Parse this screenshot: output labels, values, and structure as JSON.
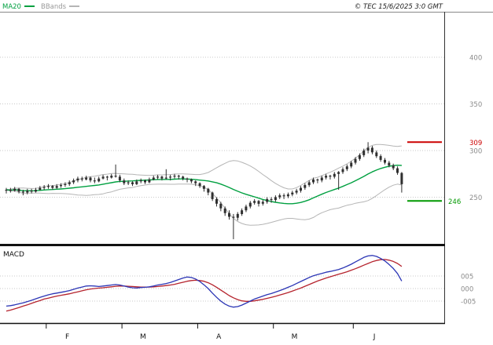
{
  "meta": {
    "copyright": "© TEC 15/6/2025 3:0 GMT"
  },
  "legend": {
    "ma20": "MA20",
    "bbands": "BBands"
  },
  "macd_panel": {
    "label": "MACD"
  },
  "colors": {
    "background": "#ffffff",
    "candle": "#2f2f2f",
    "ma20": "#00a040",
    "bbands": "#b5b5b5",
    "grid": "#c9c9c9",
    "axis_text": "#8a8a8a",
    "text": "#111111",
    "resistance": "#cc0000",
    "support": "#009900",
    "macd_line": "#2b35b5",
    "signal_line": "#b5232d"
  },
  "x_axis": {
    "months": [
      {
        "label": "F",
        "start_index": 10
      },
      {
        "label": "M",
        "start_index": 28
      },
      {
        "label": "A",
        "start_index": 46
      },
      {
        "label": "M",
        "start_index": 64
      },
      {
        "label": "J",
        "start_index": 83
      }
    ]
  },
  "chart_data": [
    {
      "type": "candlestick",
      "title": "",
      "ylim": [
        200,
        415
      ],
      "yticks": [
        {
          "label": "400",
          "value": 400
        },
        {
          "label": "350",
          "value": 350
        },
        {
          "label": "300",
          "value": 300
        },
        {
          "label": "250",
          "value": 250
        }
      ],
      "levels": [
        {
          "role": "resistance",
          "label": "309",
          "value": 309,
          "color": "#cc0000"
        },
        {
          "role": "support",
          "label": "246",
          "value": 246,
          "color": "#009900"
        }
      ],
      "overlays": {
        "ma20": {
          "window": 20,
          "color": "#00a040"
        },
        "bbands": {
          "window": 20,
          "stddev": 2,
          "color": "#b5b5b5"
        }
      },
      "candles": [
        [
          257,
          260,
          254,
          258
        ],
        [
          258,
          260,
          255,
          257
        ],
        [
          257,
          261,
          256,
          259
        ],
        [
          259,
          260,
          254,
          256
        ],
        [
          256,
          258,
          252,
          255
        ],
        [
          255,
          259,
          253,
          257
        ],
        [
          257,
          259,
          254,
          256
        ],
        [
          256,
          260,
          255,
          258
        ],
        [
          258,
          262,
          257,
          260
        ],
        [
          260,
          263,
          258,
          261
        ],
        [
          261,
          264,
          259,
          262
        ],
        [
          262,
          263,
          258,
          260
        ],
        [
          260,
          264,
          259,
          262
        ],
        [
          262,
          265,
          260,
          263
        ],
        [
          263,
          266,
          261,
          264
        ],
        [
          264,
          268,
          262,
          266
        ],
        [
          266,
          270,
          264,
          268
        ],
        [
          268,
          272,
          266,
          270
        ],
        [
          270,
          272,
          267,
          269
        ],
        [
          269,
          273,
          268,
          271
        ],
        [
          271,
          272,
          266,
          268
        ],
        [
          268,
          271,
          265,
          267
        ],
        [
          267,
          272,
          266,
          270
        ],
        [
          270,
          274,
          269,
          272
        ],
        [
          272,
          273,
          268,
          271
        ],
        [
          271,
          275,
          270,
          273
        ],
        [
          273,
          285,
          271,
          272
        ],
        [
          272,
          274,
          266,
          268
        ],
        [
          268,
          270,
          263,
          265
        ],
        [
          265,
          268,
          263,
          266
        ],
        [
          266,
          267,
          262,
          264
        ],
        [
          264,
          269,
          263,
          267
        ],
        [
          267,
          270,
          265,
          268
        ],
        [
          268,
          269,
          264,
          266
        ],
        [
          266,
          271,
          265,
          269
        ],
        [
          269,
          273,
          268,
          271
        ],
        [
          271,
          274,
          269,
          272
        ],
        [
          272,
          273,
          268,
          270
        ],
        [
          270,
          280,
          269,
          271
        ],
        [
          271,
          274,
          268,
          272
        ],
        [
          272,
          275,
          270,
          273
        ],
        [
          273,
          274,
          269,
          272
        ],
        [
          272,
          273,
          268,
          270
        ],
        [
          270,
          271,
          266,
          269
        ],
        [
          269,
          270,
          265,
          267
        ],
        [
          267,
          268,
          262,
          265
        ],
        [
          265,
          266,
          260,
          262
        ],
        [
          262,
          263,
          256,
          259
        ],
        [
          259,
          260,
          252,
          255
        ],
        [
          255,
          256,
          246,
          248
        ],
        [
          248,
          250,
          240,
          243
        ],
        [
          243,
          245,
          235,
          238
        ],
        [
          238,
          240,
          230,
          233
        ],
        [
          233,
          236,
          226,
          229
        ],
        [
          229,
          232,
          205,
          228
        ],
        [
          228,
          234,
          225,
          232
        ],
        [
          232,
          238,
          230,
          236
        ],
        [
          236,
          242,
          234,
          240
        ],
        [
          240,
          246,
          238,
          244
        ],
        [
          244,
          248,
          242,
          246
        ],
        [
          246,
          247,
          240,
          243
        ],
        [
          243,
          247,
          241,
          245
        ],
        [
          245,
          250,
          243,
          248
        ],
        [
          248,
          250,
          244,
          247
        ],
        [
          247,
          252,
          245,
          250
        ],
        [
          250,
          254,
          248,
          252
        ],
        [
          252,
          254,
          248,
          251
        ],
        [
          251,
          255,
          249,
          253
        ],
        [
          253,
          257,
          251,
          255
        ],
        [
          255,
          259,
          253,
          257
        ],
        [
          257,
          262,
          255,
          260
        ],
        [
          260,
          265,
          258,
          263
        ],
        [
          263,
          268,
          261,
          266
        ],
        [
          266,
          271,
          264,
          269
        ],
        [
          269,
          270,
          265,
          268
        ],
        [
          268,
          273,
          266,
          271
        ],
        [
          271,
          275,
          269,
          273
        ],
        [
          273,
          274,
          269,
          272
        ],
        [
          272,
          277,
          270,
          275
        ],
        [
          275,
          278,
          258,
          277
        ],
        [
          277,
          282,
          275,
          280
        ],
        [
          280,
          285,
          278,
          283
        ],
        [
          283,
          289,
          281,
          287
        ],
        [
          287,
          293,
          285,
          291
        ],
        [
          291,
          297,
          289,
          295
        ],
        [
          295,
          302,
          293,
          300
        ],
        [
          300,
          309,
          297,
          303
        ],
        [
          303,
          305,
          296,
          298
        ],
        [
          298,
          300,
          292,
          294
        ],
        [
          294,
          296,
          288,
          290
        ],
        [
          290,
          292,
          285,
          287
        ],
        [
          287,
          289,
          282,
          284
        ],
        [
          284,
          286,
          279,
          281
        ],
        [
          281,
          283,
          274,
          276
        ],
        [
          276,
          277,
          255,
          264
        ]
      ]
    },
    {
      "type": "line",
      "title": "MACD",
      "yticks": [
        {
          "label": "005",
          "value": 5
        },
        {
          "label": "000",
          "value": 0
        },
        {
          "label": "-005",
          "value": -5
        }
      ],
      "series": [
        {
          "name": "MACD",
          "color": "#2b35b5",
          "values": [
            -7.0,
            -6.8,
            -6.5,
            -6.1,
            -5.7,
            -5.2,
            -4.7,
            -4.1,
            -3.5,
            -3.0,
            -2.5,
            -2.1,
            -1.8,
            -1.5,
            -1.2,
            -0.8,
            -0.3,
            0.2,
            0.6,
            1.0,
            1.1,
            1.0,
            0.8,
            1.0,
            1.2,
            1.4,
            1.6,
            1.4,
            1.0,
            0.6,
            0.3,
            0.2,
            0.4,
            0.5,
            0.7,
            1.0,
            1.4,
            1.7,
            2.0,
            2.4,
            3.0,
            3.6,
            4.2,
            4.6,
            4.4,
            3.8,
            2.8,
            1.5,
            0.0,
            -1.8,
            -3.5,
            -5.0,
            -6.2,
            -7.0,
            -7.4,
            -7.2,
            -6.6,
            -5.8,
            -5.0,
            -4.2,
            -3.6,
            -3.0,
            -2.4,
            -2.0,
            -1.4,
            -0.8,
            -0.2,
            0.5,
            1.2,
            2.0,
            2.8,
            3.6,
            4.4,
            5.1,
            5.6,
            6.0,
            6.5,
            6.8,
            7.2,
            7.6,
            8.2,
            8.9,
            9.7,
            10.6,
            11.5,
            12.4,
            13.0,
            13.2,
            12.8,
            12.0,
            11.0,
            9.6,
            8.0,
            6.0,
            3.0
          ]
        },
        {
          "name": "Signal",
          "color": "#b5232d",
          "values": [
            -9.0,
            -8.6,
            -8.1,
            -7.6,
            -7.0,
            -6.5,
            -5.9,
            -5.3,
            -4.8,
            -4.2,
            -3.8,
            -3.4,
            -3.0,
            -2.7,
            -2.4,
            -2.1,
            -1.7,
            -1.3,
            -0.9,
            -0.5,
            -0.2,
            0.0,
            0.2,
            0.3,
            0.5,
            0.7,
            0.9,
            1.0,
            1.0,
            0.9,
            0.8,
            0.7,
            0.6,
            0.6,
            0.6,
            0.7,
            0.8,
            1.0,
            1.2,
            1.4,
            1.7,
            2.1,
            2.5,
            2.9,
            3.2,
            3.3,
            3.2,
            2.9,
            2.3,
            1.5,
            0.5,
            -0.6,
            -1.7,
            -2.8,
            -3.7,
            -4.4,
            -4.9,
            -5.1,
            -5.1,
            -4.9,
            -4.6,
            -4.3,
            -3.9,
            -3.5,
            -3.1,
            -2.6,
            -2.1,
            -1.6,
            -1.0,
            -0.4,
            0.2,
            0.9,
            1.6,
            2.3,
            3.0,
            3.6,
            4.2,
            4.7,
            5.2,
            5.7,
            6.2,
            6.7,
            7.3,
            7.9,
            8.6,
            9.3,
            10.0,
            10.7,
            11.2,
            11.5,
            11.6,
            11.3,
            10.8,
            10.0,
            8.8
          ]
        }
      ]
    }
  ]
}
